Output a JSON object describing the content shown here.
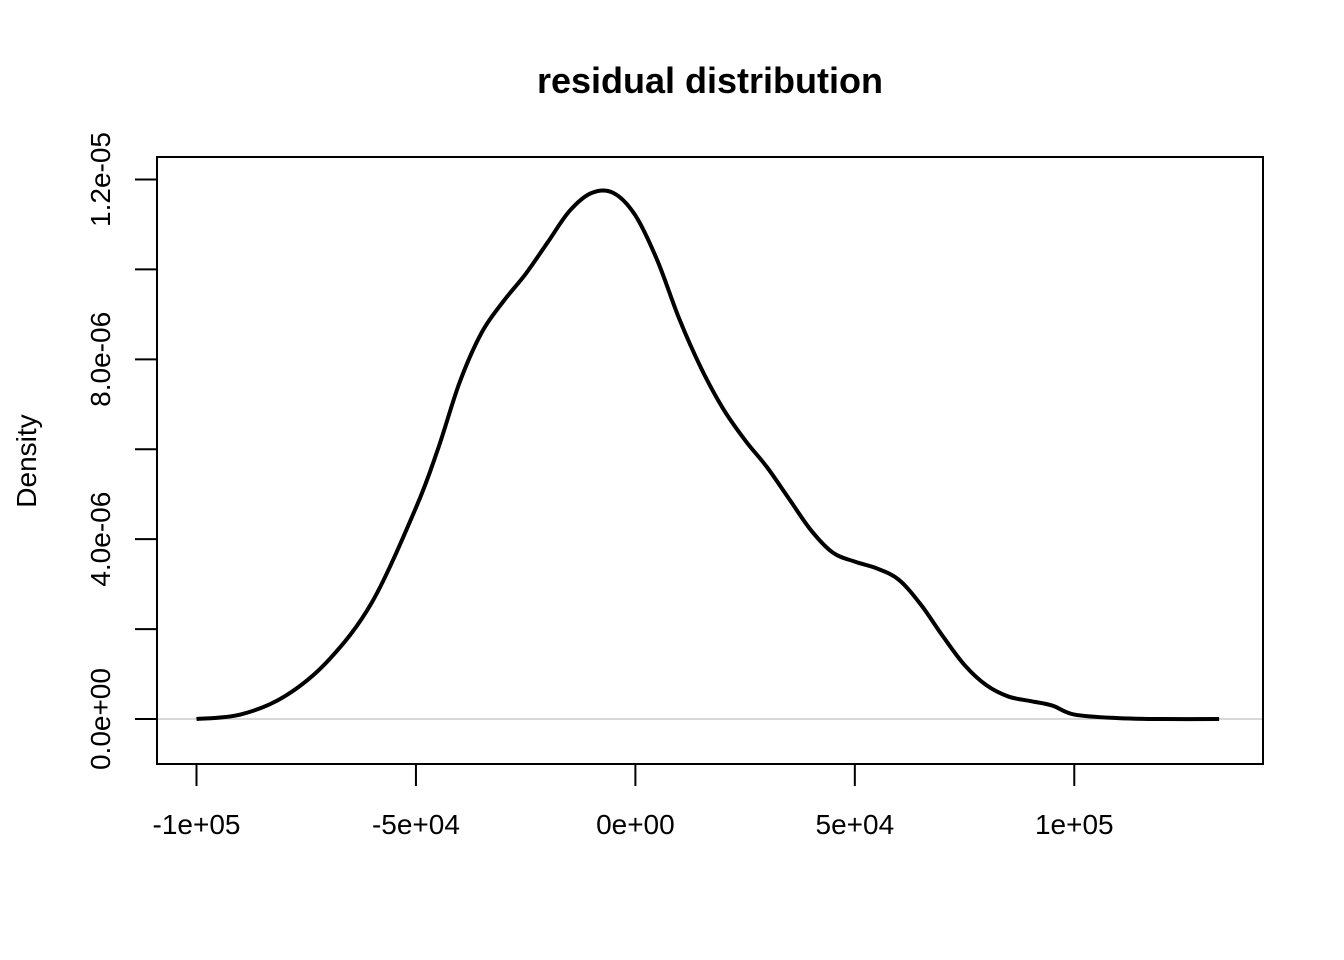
{
  "chart_data": {
    "type": "line",
    "title": "residual distribution",
    "xlabel": "",
    "ylabel": "Density",
    "xlim": [
      -109000,
      143000
    ],
    "ylim": [
      -1e-06,
      1.25e-05
    ],
    "x_ticks": [
      {
        "value": -100000,
        "label": "-1e+05"
      },
      {
        "value": -50000,
        "label": "-5e+04"
      },
      {
        "value": 0,
        "label": "0e+00"
      },
      {
        "value": 50000,
        "label": "5e+04"
      },
      {
        "value": 100000,
        "label": "1e+05"
      }
    ],
    "y_ticks": [
      {
        "value": 0,
        "label": "0.0e+00"
      },
      {
        "value": 2e-06,
        "label": ""
      },
      {
        "value": 4e-06,
        "label": "4.0e-06"
      },
      {
        "value": 6e-06,
        "label": ""
      },
      {
        "value": 8e-06,
        "label": "8.0e-06"
      },
      {
        "value": 1e-05,
        "label": ""
      },
      {
        "value": 1.2e-05,
        "label": "1.2e-05"
      }
    ],
    "baseline_y": 0,
    "grid": false,
    "series": [
      {
        "color": "#000000",
        "x": [
          -100000,
          -90000,
          -80000,
          -70000,
          -60000,
          -50000,
          -45000,
          -40000,
          -35000,
          -30000,
          -25000,
          -20000,
          -15000,
          -10000,
          -5000,
          0,
          5000,
          10000,
          15000,
          20000,
          25000,
          30000,
          35000,
          40000,
          45000,
          50000,
          55000,
          60000,
          65000,
          70000,
          75000,
          80000,
          85000,
          90000,
          95000,
          100000,
          110000,
          120000,
          133000
        ],
        "y": [
          0.0,
          1e-07,
          5e-07,
          1.3e-06,
          2.6e-06,
          4.7e-06,
          6e-06,
          7.5e-06,
          8.6e-06,
          9.3e-06,
          9.9e-06,
          1.06e-05,
          1.13e-05,
          1.17e-05,
          1.17e-05,
          1.12e-05,
          1.02e-05,
          8.9e-06,
          7.8e-06,
          6.9e-06,
          6.2e-06,
          5.6e-06,
          4.9e-06,
          4.2e-06,
          3.7e-06,
          3.5e-06,
          3.35e-06,
          3.1e-06,
          2.55e-06,
          1.85e-06,
          1.2e-06,
          7.5e-07,
          5e-07,
          4e-07,
          3e-07,
          1e-07,
          2e-08,
          0.0,
          0.0
        ]
      }
    ]
  }
}
